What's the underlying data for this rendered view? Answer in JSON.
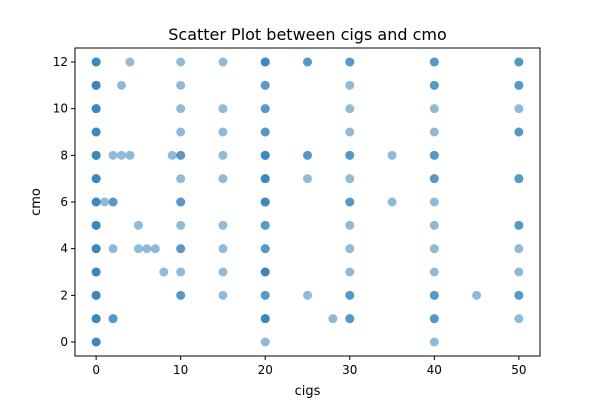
{
  "chart_data": {
    "type": "scatter",
    "title": "Scatter Plot between cigs and cmo",
    "xlabel": "cigs",
    "ylabel": "cmo",
    "xlim": [
      -2.5,
      52.5
    ],
    "ylim": [
      -0.6,
      12.6
    ],
    "xticks": [
      0,
      10,
      20,
      30,
      40,
      50
    ],
    "yticks": [
      0,
      2,
      4,
      6,
      8,
      10,
      12
    ],
    "grid": false,
    "point_color": "#1f77b4",
    "point_alpha": 0.5,
    "series": [
      {
        "points": [
          [
            0,
            0
          ],
          [
            0,
            1
          ],
          [
            0,
            2
          ],
          [
            0,
            3
          ],
          [
            0,
            4
          ],
          [
            0,
            5
          ],
          [
            0,
            6
          ],
          [
            0,
            7
          ],
          [
            0,
            8
          ],
          [
            0,
            9
          ],
          [
            0,
            10
          ],
          [
            0,
            11
          ],
          [
            0,
            12
          ],
          [
            0,
            0
          ],
          [
            0,
            1
          ],
          [
            0,
            2
          ],
          [
            0,
            3
          ],
          [
            0,
            4
          ],
          [
            0,
            5
          ],
          [
            0,
            6
          ],
          [
            0,
            7
          ],
          [
            0,
            8
          ],
          [
            0,
            9
          ],
          [
            0,
            10
          ],
          [
            0,
            11
          ],
          [
            0,
            12
          ],
          [
            0,
            0
          ],
          [
            0,
            1
          ],
          [
            0,
            2
          ],
          [
            0,
            3
          ],
          [
            0,
            4
          ],
          [
            0,
            5
          ],
          [
            0,
            6
          ],
          [
            0,
            7
          ],
          [
            0,
            8
          ],
          [
            0,
            9
          ],
          [
            0,
            10
          ],
          [
            0,
            11
          ],
          [
            0,
            12
          ],
          [
            1,
            6
          ],
          [
            2,
            1
          ],
          [
            2,
            1
          ],
          [
            2,
            4
          ],
          [
            2,
            6
          ],
          [
            2,
            6
          ],
          [
            2,
            8
          ],
          [
            3,
            8
          ],
          [
            3,
            11
          ],
          [
            4,
            8
          ],
          [
            4,
            12
          ],
          [
            5,
            4
          ],
          [
            5,
            5
          ],
          [
            6,
            4
          ],
          [
            7,
            4
          ],
          [
            8,
            3
          ],
          [
            9,
            8
          ],
          [
            10,
            2
          ],
          [
            10,
            2
          ],
          [
            10,
            3
          ],
          [
            10,
            4
          ],
          [
            10,
            4
          ],
          [
            10,
            5
          ],
          [
            10,
            6
          ],
          [
            10,
            6
          ],
          [
            10,
            7
          ],
          [
            10,
            8
          ],
          [
            10,
            8
          ],
          [
            10,
            9
          ],
          [
            10,
            10
          ],
          [
            10,
            11
          ],
          [
            10,
            12
          ],
          [
            15,
            2
          ],
          [
            15,
            3
          ],
          [
            15,
            4
          ],
          [
            15,
            5
          ],
          [
            15,
            7
          ],
          [
            15,
            8
          ],
          [
            15,
            9
          ],
          [
            15,
            10
          ],
          [
            15,
            12
          ],
          [
            20,
            0
          ],
          [
            20,
            1
          ],
          [
            20,
            2
          ],
          [
            20,
            3
          ],
          [
            20,
            4
          ],
          [
            20,
            5
          ],
          [
            20,
            6
          ],
          [
            20,
            7
          ],
          [
            20,
            8
          ],
          [
            20,
            9
          ],
          [
            20,
            10
          ],
          [
            20,
            11
          ],
          [
            20,
            12
          ],
          [
            20,
            1
          ],
          [
            20,
            2
          ],
          [
            20,
            3
          ],
          [
            20,
            4
          ],
          [
            20,
            5
          ],
          [
            20,
            6
          ],
          [
            20,
            7
          ],
          [
            20,
            8
          ],
          [
            20,
            9
          ],
          [
            20,
            10
          ],
          [
            20,
            11
          ],
          [
            20,
            12
          ],
          [
            20,
            1
          ],
          [
            20,
            3
          ],
          [
            20,
            6
          ],
          [
            20,
            7
          ],
          [
            20,
            8
          ],
          [
            20,
            12
          ],
          [
            25,
            2
          ],
          [
            25,
            7
          ],
          [
            25,
            8
          ],
          [
            25,
            8
          ],
          [
            25,
            12
          ],
          [
            25,
            12
          ],
          [
            28,
            1
          ],
          [
            30,
            1
          ],
          [
            30,
            1
          ],
          [
            30,
            2
          ],
          [
            30,
            2
          ],
          [
            30,
            3
          ],
          [
            30,
            4
          ],
          [
            30,
            5
          ],
          [
            30,
            6
          ],
          [
            30,
            6
          ],
          [
            30,
            7
          ],
          [
            30,
            8
          ],
          [
            30,
            8
          ],
          [
            30,
            9
          ],
          [
            30,
            10
          ],
          [
            30,
            11
          ],
          [
            30,
            12
          ],
          [
            30,
            12
          ],
          [
            35,
            6
          ],
          [
            35,
            8
          ],
          [
            40,
            0
          ],
          [
            40,
            1
          ],
          [
            40,
            1
          ],
          [
            40,
            2
          ],
          [
            40,
            2
          ],
          [
            40,
            3
          ],
          [
            40,
            4
          ],
          [
            40,
            5
          ],
          [
            40,
            6
          ],
          [
            40,
            7
          ],
          [
            40,
            7
          ],
          [
            40,
            8
          ],
          [
            40,
            8
          ],
          [
            40,
            9
          ],
          [
            40,
            10
          ],
          [
            40,
            11
          ],
          [
            40,
            11
          ],
          [
            40,
            12
          ],
          [
            40,
            12
          ],
          [
            45,
            2
          ],
          [
            50,
            1
          ],
          [
            50,
            2
          ],
          [
            50,
            2
          ],
          [
            50,
            3
          ],
          [
            50,
            4
          ],
          [
            50,
            5
          ],
          [
            50,
            5
          ],
          [
            50,
            7
          ],
          [
            50,
            7
          ],
          [
            50,
            9
          ],
          [
            50,
            9
          ],
          [
            50,
            10
          ],
          [
            50,
            11
          ],
          [
            50,
            11
          ],
          [
            50,
            12
          ],
          [
            50,
            12
          ]
        ]
      }
    ]
  }
}
